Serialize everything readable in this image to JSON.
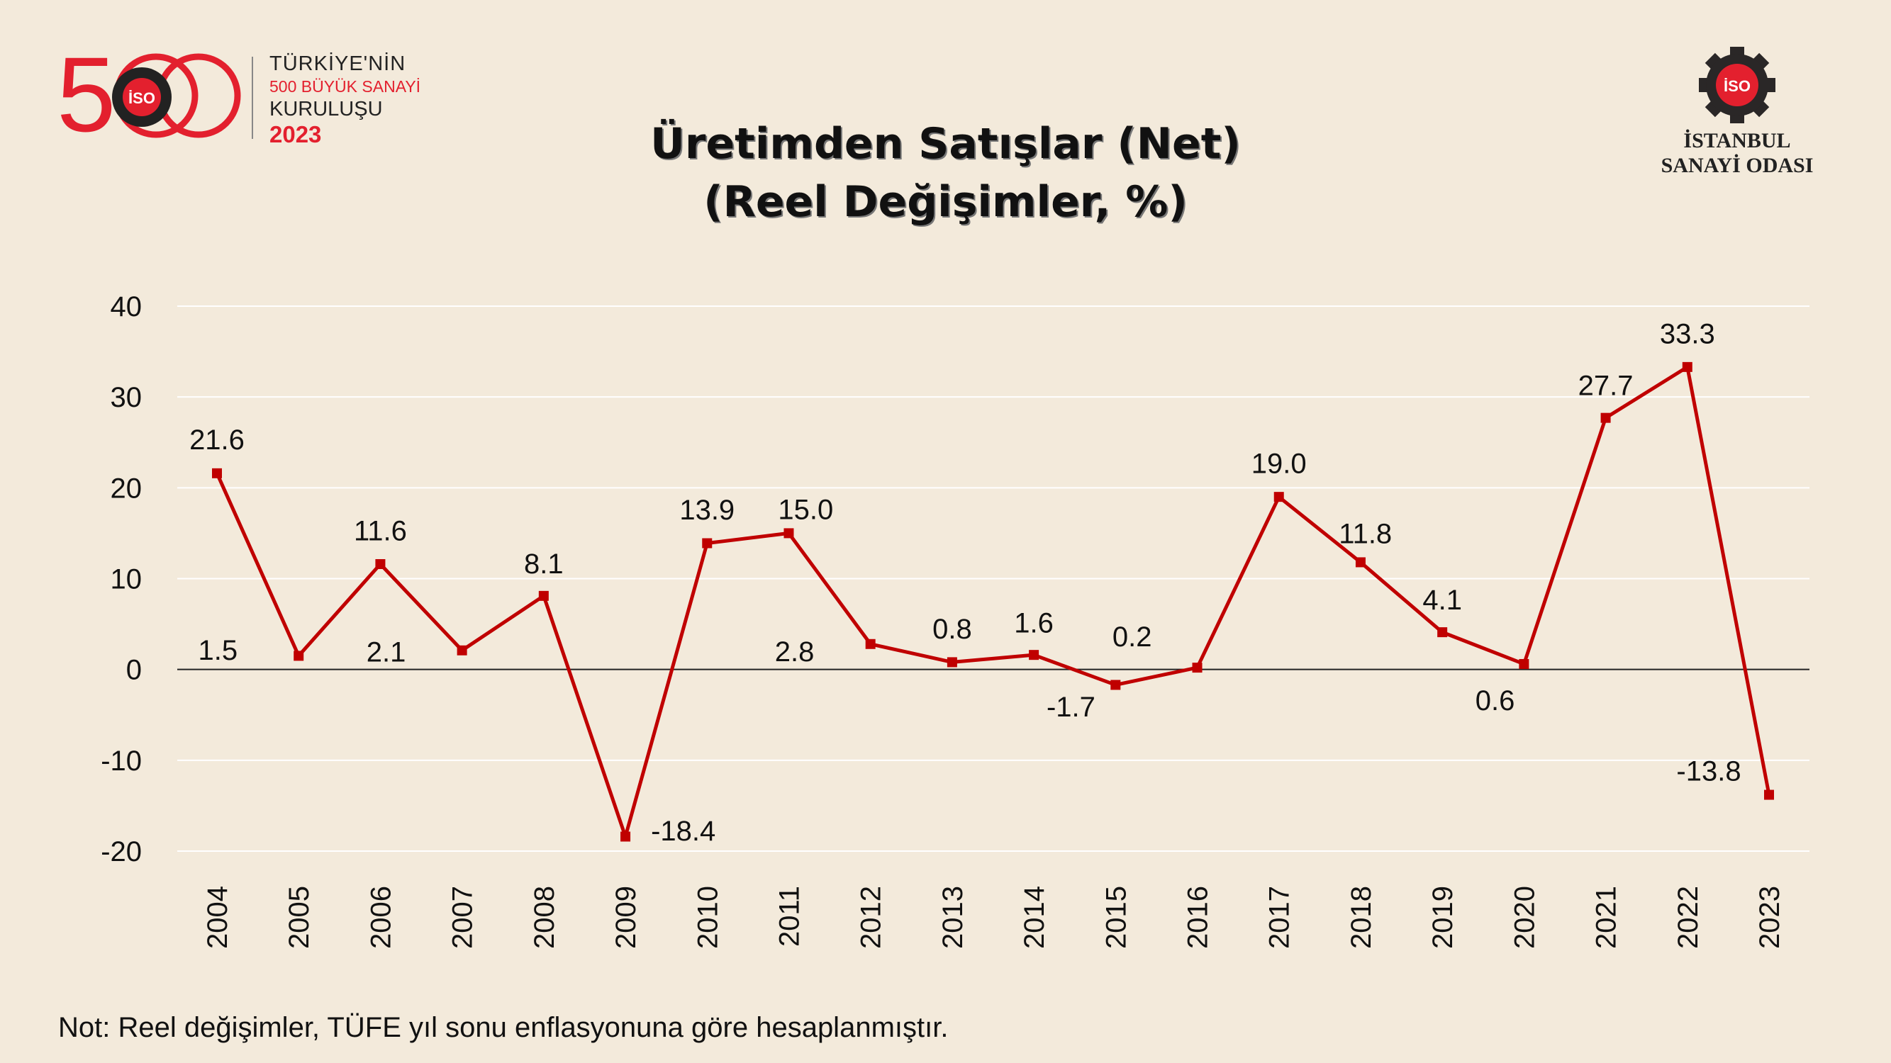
{
  "logos": {
    "left": {
      "number": "500",
      "mark": "İSO",
      "line1": "TÜRKİYE'NİN",
      "line2": "500 BÜYÜK SANAYİ",
      "line3": "KURULUŞU",
      "year": "2023"
    },
    "right": {
      "mark": "İSO",
      "line1": "İSTANBUL",
      "line2": "SANAYİ ODASI"
    }
  },
  "note": "Not: Reel değişimler, TÜFE yıl sonu enflasyonuna göre hesaplanmıştır.",
  "colors": {
    "line": "#c00000",
    "background": "#f3eadb",
    "brand_red": "#e3202e"
  },
  "chart_data": {
    "type": "line",
    "title": "Üretimden Satışlar (Net)",
    "subtitle": "(Reel Değişimler, %)",
    "xlabel": "",
    "ylabel": "",
    "ylim": [
      -20,
      40
    ],
    "yticks": [
      "40",
      "30",
      "20",
      "10",
      "0",
      "-10",
      "-20"
    ],
    "grid": true,
    "legend": "none",
    "categories": [
      "2004",
      "2005",
      "2006",
      "2007",
      "2008",
      "2009",
      "2010",
      "2011",
      "2012",
      "2013",
      "2014",
      "2015",
      "2016",
      "2017",
      "2018",
      "2019",
      "2020",
      "2021",
      "2022",
      "2023"
    ],
    "series": [
      {
        "name": "Üretimden Satışlar (Net)",
        "values": [
          21.6,
          1.5,
          11.6,
          2.1,
          8.1,
          -18.4,
          13.9,
          15.0,
          2.8,
          0.8,
          1.6,
          -1.7,
          0.2,
          19.0,
          11.8,
          4.1,
          0.6,
          27.7,
          33.3,
          -13.8
        ]
      }
    ],
    "data_labels": [
      "21.6",
      "1.5",
      "11.6",
      "2.1",
      "8.1",
      "-18.4",
      "13.9",
      "15.0",
      "2.8",
      "0.8",
      "1.6",
      "-1.7",
      "0.2",
      "19.0",
      "11.8",
      "4.1",
      "0.6",
      "27.7",
      "33.3",
      "-13.8"
    ]
  }
}
